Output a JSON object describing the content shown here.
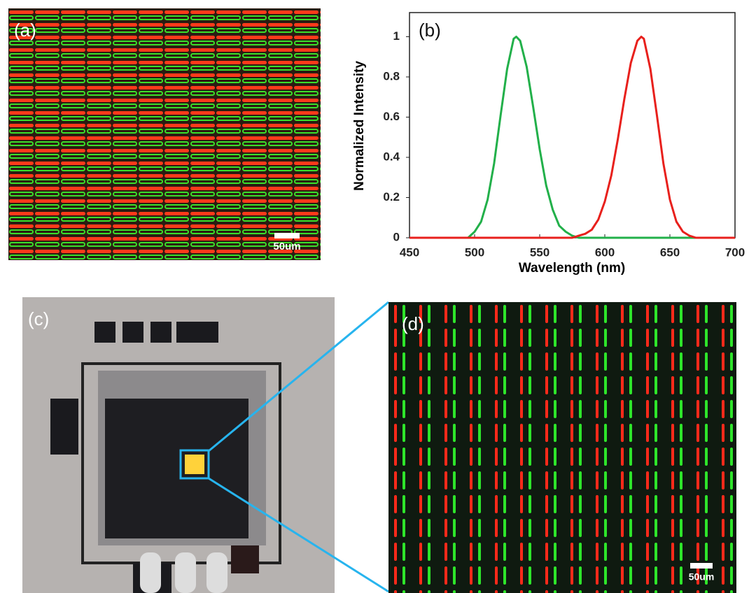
{
  "panels": {
    "a": {
      "label": "(a)",
      "scale_bar": "50um"
    },
    "c": {
      "label": "(c)"
    },
    "d": {
      "label": "(d)",
      "scale_bar": "50um"
    }
  },
  "chart_data": {
    "type": "line",
    "annotation": "(b)",
    "x_label": "Wavelength (nm)",
    "y_label": "Normalized Intensity",
    "x": [
      450,
      455,
      460,
      465,
      470,
      475,
      480,
      485,
      490,
      495,
      500,
      505,
      510,
      515,
      520,
      525,
      530,
      532,
      535,
      540,
      545,
      550,
      555,
      560,
      565,
      570,
      575,
      580,
      585,
      590,
      595,
      600,
      605,
      610,
      615,
      620,
      625,
      628,
      630,
      635,
      640,
      645,
      650,
      655,
      660,
      665,
      670,
      675,
      680,
      685,
      690,
      695,
      700
    ],
    "series": [
      {
        "name": "green",
        "color": "#22b04a",
        "values": [
          0,
          0,
          0,
          0,
          0,
          0,
          0,
          0,
          0,
          0,
          0.03,
          0.08,
          0.19,
          0.37,
          0.61,
          0.84,
          0.99,
          1,
          0.98,
          0.85,
          0.65,
          0.44,
          0.26,
          0.14,
          0.06,
          0.03,
          0.01,
          0,
          0,
          0,
          0,
          0,
          0,
          0,
          0,
          0,
          0,
          0,
          0,
          0,
          0,
          0,
          0,
          0,
          0,
          0,
          0,
          0,
          0,
          0,
          0,
          0,
          0
        ]
      },
      {
        "name": "red",
        "color": "#e8201c",
        "values": [
          0,
          0,
          0,
          0,
          0,
          0,
          0,
          0,
          0,
          0,
          0,
          0,
          0,
          0,
          0,
          0,
          0,
          0,
          0,
          0,
          0,
          0,
          0,
          0,
          0,
          0,
          0,
          0.01,
          0.02,
          0.04,
          0.09,
          0.18,
          0.31,
          0.49,
          0.69,
          0.87,
          0.98,
          1,
          0.99,
          0.84,
          0.61,
          0.37,
          0.19,
          0.08,
          0.03,
          0.01,
          0,
          0,
          0,
          0,
          0,
          0,
          0
        ]
      }
    ],
    "xlim": [
      450,
      700
    ],
    "ylim": [
      0,
      1.12
    ],
    "xticks": [
      450,
      500,
      550,
      600,
      650,
      700
    ],
    "yticks": [
      0,
      0.2,
      0.4,
      0.6,
      0.8,
      1
    ]
  }
}
